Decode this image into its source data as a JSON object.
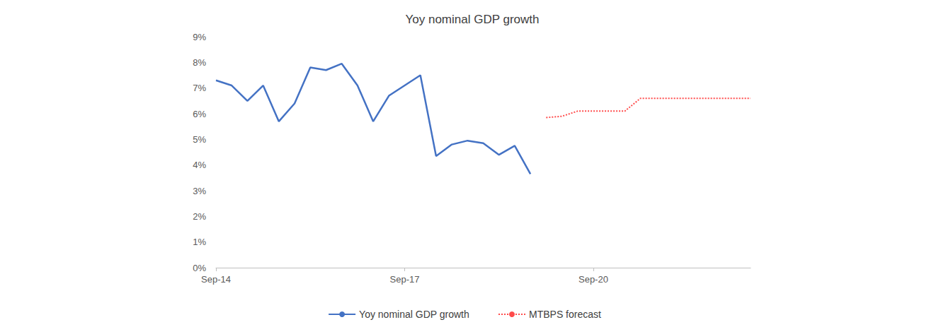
{
  "chart_data": {
    "type": "line",
    "title": "Yoy nominal GDP growth",
    "categories": [
      "Sep-14",
      null,
      null,
      null,
      null,
      null,
      null,
      null,
      null,
      null,
      null,
      null,
      "Sep-17",
      null,
      null,
      null,
      null,
      null,
      null,
      null,
      null,
      null,
      null,
      null,
      "Sep-20",
      null,
      null,
      null,
      null,
      null,
      null,
      null,
      null,
      null,
      null
    ],
    "series": [
      {
        "name": "Yoy nominal GDP growth",
        "color": "#4472c4",
        "line_style": "solid",
        "marker": "none",
        "values": [
          7.3,
          7.1,
          6.5,
          7.1,
          5.7,
          6.4,
          7.8,
          7.7,
          7.95,
          7.1,
          5.7,
          6.7,
          7.1,
          7.5,
          4.35,
          4.8,
          4.95,
          4.85,
          4.4,
          4.75,
          3.65,
          null,
          null,
          null,
          null,
          null,
          null,
          null,
          null,
          null,
          null,
          null,
          null,
          null,
          null
        ]
      },
      {
        "name": "MTBPS forecast",
        "color": "#ff4b4b",
        "line_style": "dotted",
        "marker": "none",
        "values": [
          null,
          null,
          null,
          null,
          null,
          null,
          null,
          null,
          null,
          null,
          null,
          null,
          null,
          null,
          null,
          null,
          null,
          null,
          null,
          null,
          null,
          5.85,
          5.9,
          6.1,
          6.1,
          6.1,
          6.1,
          6.6,
          6.6,
          6.6,
          6.6,
          6.6,
          6.6,
          6.6,
          6.6
        ]
      }
    ],
    "ylim": [
      0,
      9
    ],
    "yticks": [
      {
        "value": 0,
        "label": "0%"
      },
      {
        "value": 1,
        "label": "1%"
      },
      {
        "value": 2,
        "label": "2%"
      },
      {
        "value": 3,
        "label": "3%"
      },
      {
        "value": 4,
        "label": "4%"
      },
      {
        "value": 5,
        "label": "5%"
      },
      {
        "value": 6,
        "label": "6%"
      },
      {
        "value": 7,
        "label": "7%"
      },
      {
        "value": 8,
        "label": "8%"
      },
      {
        "value": 9,
        "label": "9%"
      }
    ],
    "grid": false,
    "legend": "bottom"
  }
}
